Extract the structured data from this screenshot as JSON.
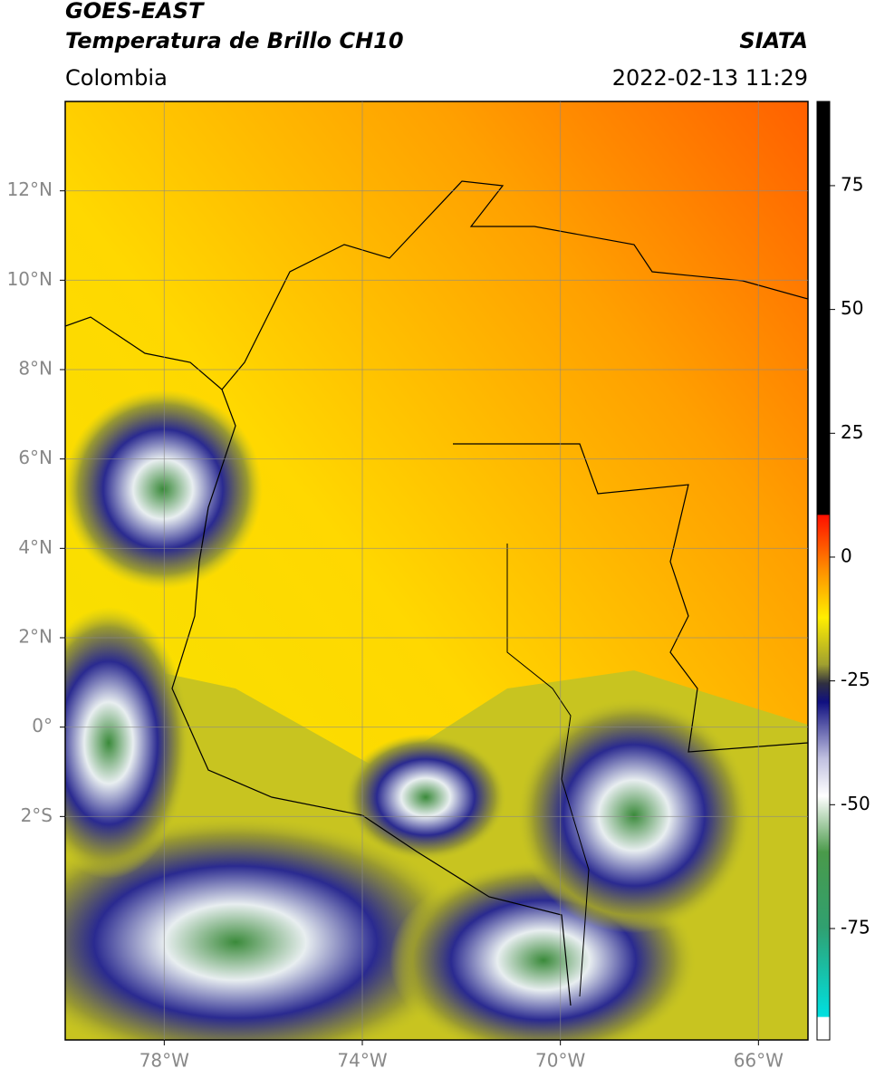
{
  "header": {
    "title": "GOES-EAST",
    "subtitle": "Temperatura de Brillo CH10",
    "source": "SIATA",
    "region": "Colombia",
    "datetime": "2022-02-13 11:29"
  },
  "map": {
    "xlim": [
      -80,
      -65
    ],
    "ylim": [
      -7,
      14
    ],
    "xticks": [
      {
        "value": -78,
        "label": "78°W"
      },
      {
        "value": -74,
        "label": "74°W"
      },
      {
        "value": -70,
        "label": "70°W"
      },
      {
        "value": -66,
        "label": "66°W"
      }
    ],
    "yticks": [
      {
        "value": 12,
        "label": "12°N"
      },
      {
        "value": 10,
        "label": "10°N"
      },
      {
        "value": 8,
        "label": "8°N"
      },
      {
        "value": 6,
        "label": "6°N"
      },
      {
        "value": 4,
        "label": "4°N"
      },
      {
        "value": 2,
        "label": "2°N"
      },
      {
        "value": 0,
        "label": "0°"
      },
      {
        "value": -2,
        "label": "2°S"
      }
    ],
    "grid": true
  },
  "colorbar": {
    "lim": [
      -97.5,
      92
    ],
    "ticks": [
      75,
      50,
      25,
      0,
      -25,
      -50,
      -75
    ]
  }
}
